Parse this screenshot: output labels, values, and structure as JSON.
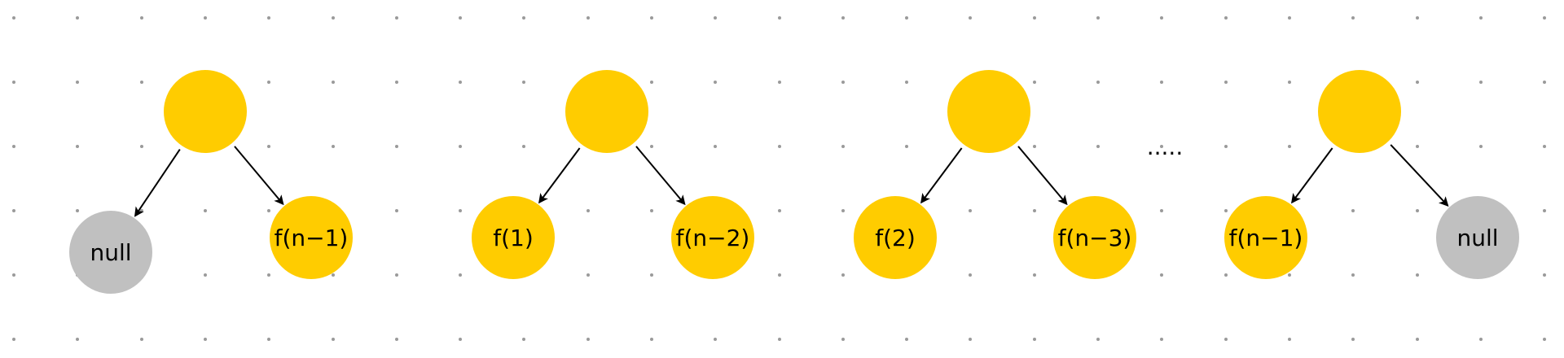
{
  "colors": {
    "background": "#ffffff",
    "grid_dot": "#9a9a9a",
    "root_node": "#ffcc00",
    "child_node": "#ffcc00",
    "null_node": "#c0c0c0",
    "edge": "#000000"
  },
  "trees": [
    {
      "left": {
        "label": "null",
        "kind": "null"
      },
      "right": {
        "label": "f(n−1)",
        "kind": "value"
      }
    },
    {
      "left": {
        "label": "f(1)",
        "kind": "value"
      },
      "right": {
        "label": "f(n−2)",
        "kind": "value"
      }
    },
    {
      "left": {
        "label": "f(2)",
        "kind": "value"
      },
      "right": {
        "label": "f(n−3)",
        "kind": "value"
      }
    },
    {
      "left": {
        "label": "f(n−1)",
        "kind": "value"
      },
      "right": {
        "label": "null",
        "kind": "null"
      }
    }
  ],
  "ellipsis": "....."
}
